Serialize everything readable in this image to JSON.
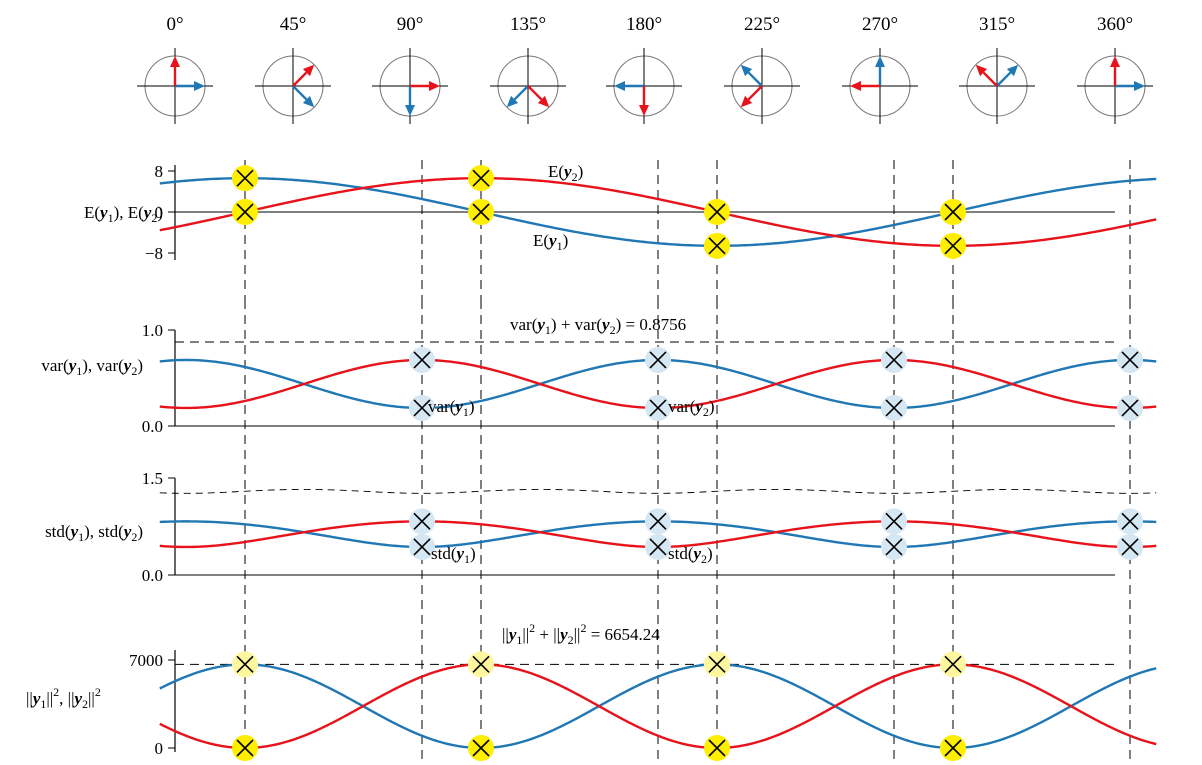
{
  "colors": {
    "y1": "#1f77b4",
    "y2": "#e8121b",
    "marker_yellow": "#ffee00",
    "marker_blue": "#d5e7f2",
    "marker_pale_yellow": "#fff7a0"
  },
  "chart_data": [
    {
      "type": "diagram",
      "name": "rotation-angles",
      "angle_labels": [
        "0°",
        "45°",
        "90°",
        "135°",
        "180°",
        "225°",
        "270°",
        "315°",
        "360°"
      ],
      "angles_deg": [
        0,
        45,
        90,
        135,
        180,
        225,
        270,
        315,
        360
      ]
    },
    {
      "type": "line",
      "ylabel_parts": [
        "E(",
        "y",
        "1",
        "), E(",
        "y",
        "2",
        ")"
      ],
      "ytick_labels": [
        "8",
        "0",
        "−8"
      ],
      "ytick_values": [
        8,
        0,
        -8
      ],
      "ylim": [
        -9,
        9
      ],
      "xlim_deg": [
        -10,
        370
      ],
      "series": [
        {
          "name_parts": [
            "E(",
            "y",
            "1",
            ")"
          ],
          "color": "blue",
          "amplitude": 6.6,
          "peak_deg": 0,
          "form": "cos"
        },
        {
          "name_parts": [
            "E(",
            "y",
            "2",
            ")"
          ],
          "color": "red",
          "amplitude": 6.6,
          "peak_deg": 90,
          "form": "sin"
        }
      ],
      "markers": [
        {
          "x_deg": 22.5,
          "y": 6.6,
          "style": "yellow"
        },
        {
          "x_deg": 22.5,
          "y": 0,
          "style": "yellow"
        },
        {
          "x_deg": 112.5,
          "y": 6.6,
          "style": "yellow"
        },
        {
          "x_deg": 112.5,
          "y": 0,
          "style": "yellow"
        },
        {
          "x_deg": 202.5,
          "y": 0,
          "style": "yellow"
        },
        {
          "x_deg": 202.5,
          "y": -6.6,
          "style": "yellow"
        },
        {
          "x_deg": 292.5,
          "y": 0,
          "style": "yellow"
        },
        {
          "x_deg": 292.5,
          "y": -6.6,
          "style": "yellow"
        }
      ]
    },
    {
      "type": "line",
      "ylabel_parts": [
        "var(",
        "y",
        "1",
        "), var(",
        "y",
        "2",
        ")"
      ],
      "ytick_labels": [
        "1.0",
        "0.0"
      ],
      "ytick_values": [
        1.0,
        0.0
      ],
      "ylim": [
        0,
        1.0
      ],
      "annotation_parts": [
        "var(",
        "y",
        "1",
        ") + var(",
        "y",
        "2",
        ") = 0.8756"
      ],
      "total": 0.8756,
      "series": [
        {
          "name_parts": [
            "var(",
            "y",
            "1",
            ")"
          ],
          "color": "blue",
          "mean": 0.4378,
          "amplitude": 0.25,
          "peak_deg": 0
        },
        {
          "name_parts": [
            "var(",
            "y",
            "2",
            ")"
          ],
          "color": "red",
          "mean": 0.4378,
          "amplitude": -0.25,
          "peak_deg": 0
        }
      ],
      "markers_x_deg": [
        90,
        180,
        270,
        360
      ],
      "marker_style": "blue"
    },
    {
      "type": "line",
      "ylabel_parts": [
        "std(",
        "y",
        "1",
        "), std(",
        "y",
        "2",
        ")"
      ],
      "ytick_labels": [
        "1.5",
        "0.0"
      ],
      "ytick_values": [
        1.5,
        0.0
      ],
      "ylim": [
        0,
        1.5
      ],
      "series": [
        {
          "name_parts": [
            "std(",
            "y",
            "1",
            ")"
          ],
          "color": "blue",
          "mean": 0.4378,
          "amplitude": 0.25,
          "peak_deg": 0
        },
        {
          "name_parts": [
            "std(",
            "y",
            "2",
            ")"
          ],
          "color": "red",
          "mean": 0.4378,
          "amplitude": -0.25,
          "peak_deg": 0
        }
      ],
      "markers_x_deg": [
        90,
        180,
        270,
        360
      ],
      "marker_style": "blue"
    },
    {
      "type": "line",
      "ylabel_parts": [
        "||",
        "y",
        "1",
        "||",
        "2",
        ", ||",
        "y",
        "2",
        "||",
        "2"
      ],
      "ytick_labels": [
        "7000",
        "0"
      ],
      "ytick_values": [
        7000,
        0
      ],
      "ylim": [
        0,
        7000
      ],
      "annotation_parts": [
        "||",
        "y",
        "1",
        "||",
        "2",
        " + ||",
        "y",
        "2",
        "||",
        "2",
        " =  6654.24"
      ],
      "total": 6654.24,
      "series": [
        {
          "name": "",
          "color": "blue",
          "total": 6654.24,
          "peak_deg": 22.5
        },
        {
          "name": "",
          "color": "red",
          "total": 6654.24,
          "peak_deg": 112.5
        }
      ],
      "markers_x_deg": [
        22.5,
        112.5,
        202.5,
        292.5
      ],
      "marker_style": "pale-yellow"
    }
  ]
}
